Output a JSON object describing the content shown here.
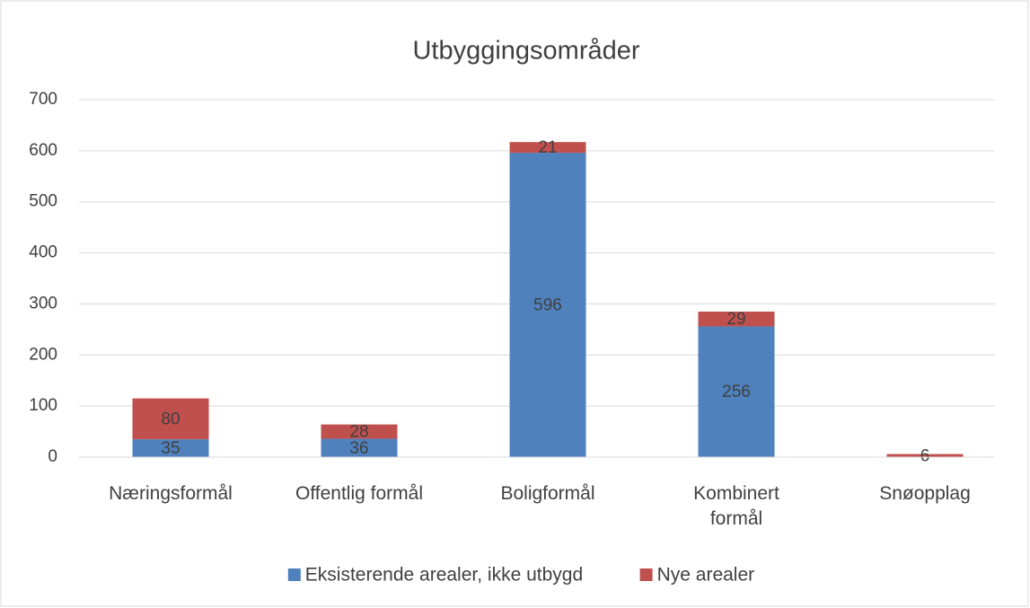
{
  "chart_data": {
    "type": "stacked_bar",
    "title": "Utbyggingsområder",
    "categories": [
      "Næringsformål",
      "Offentlig formål",
      "Boligformål",
      "Kombinert\nformål",
      "Snøopplag"
    ],
    "series": [
      {
        "name": "Eksisterende arealer, ikke utbygd",
        "color": "#4f81bd",
        "values": [
          35,
          36,
          596,
          256,
          null
        ]
      },
      {
        "name": "Nye arealer",
        "color": "#c0504d",
        "values": [
          80,
          28,
          21,
          29,
          6
        ]
      }
    ],
    "ylim": [
      0,
      700
    ],
    "yticks": [
      0,
      100,
      200,
      300,
      400,
      500,
      600,
      700
    ],
    "grid": true,
    "legend": "bottom"
  }
}
